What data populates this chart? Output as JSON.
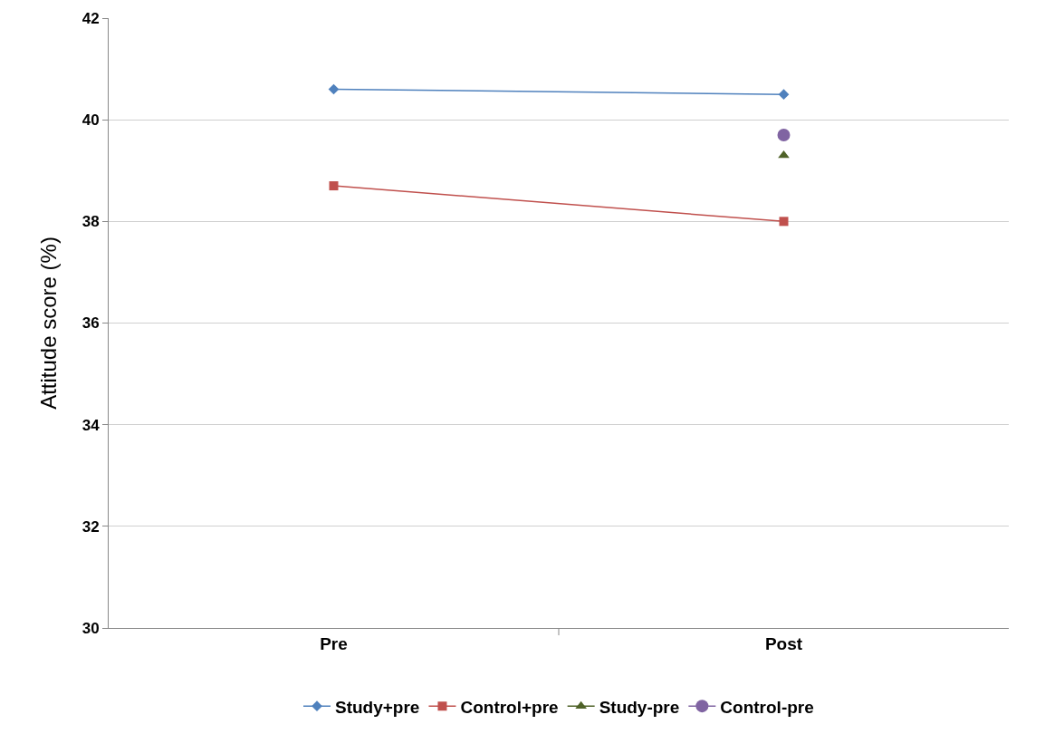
{
  "chart_data": {
    "type": "line",
    "ylabel": "Attitude score (%)",
    "categories": [
      "Pre",
      "Post"
    ],
    "series": [
      {
        "name": "Study+pre",
        "color": "#4f81bd",
        "marker": "diamond",
        "values": [
          40.6,
          40.5
        ]
      },
      {
        "name": "Control+pre",
        "color": "#c0504d",
        "marker": "square",
        "values": [
          38.7,
          38.0
        ]
      },
      {
        "name": "Study-pre",
        "color": "#4f6228",
        "marker": "triangle",
        "values": [
          null,
          39.3
        ]
      },
      {
        "name": "Control-pre",
        "color": "#8064a2",
        "marker": "circle",
        "values": [
          null,
          39.7
        ]
      }
    ],
    "ylim": [
      30,
      42
    ],
    "yticks": [
      30,
      32,
      34,
      36,
      38,
      40,
      42
    ],
    "grid": "y",
    "legend": "bottom"
  }
}
